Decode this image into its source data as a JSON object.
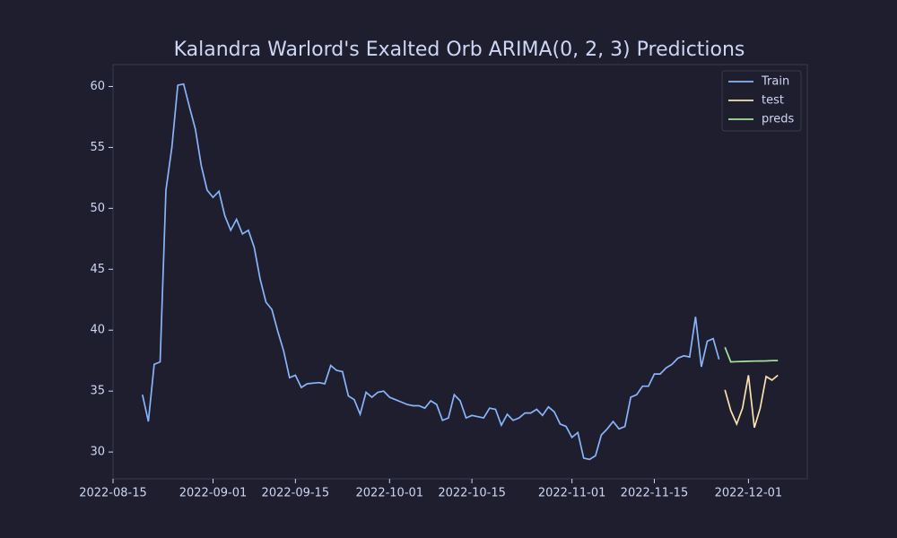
{
  "chart_data": {
    "type": "line",
    "title": "Kalandra Warlord's Exalted Orb ARIMA(0, 2, 3) Predictions",
    "xlim": [
      "2022-08-15",
      "2022-12-11"
    ],
    "xticks": [
      "2022-08-15",
      "2022-09-01",
      "2022-09-15",
      "2022-10-01",
      "2022-10-15",
      "2022-11-01",
      "2022-11-15",
      "2022-12-01"
    ],
    "ylim": [
      27.8,
      61.8
    ],
    "yticks": [
      30,
      35,
      40,
      45,
      50,
      55,
      60
    ],
    "legend": "upper right",
    "series": [
      {
        "name": "Train",
        "color": "#89b4fa",
        "x": [
          "2022-08-20",
          "2022-08-21",
          "2022-08-22",
          "2022-08-23",
          "2022-08-24",
          "2022-08-25",
          "2022-08-26",
          "2022-08-27",
          "2022-08-28",
          "2022-08-29",
          "2022-08-30",
          "2022-08-31",
          "2022-09-01",
          "2022-09-02",
          "2022-09-03",
          "2022-09-04",
          "2022-09-05",
          "2022-09-06",
          "2022-09-07",
          "2022-09-08",
          "2022-09-09",
          "2022-09-10",
          "2022-09-11",
          "2022-09-12",
          "2022-09-13",
          "2022-09-14",
          "2022-09-15",
          "2022-09-16",
          "2022-09-17",
          "2022-09-18",
          "2022-09-19",
          "2022-09-20",
          "2022-09-21",
          "2022-09-22",
          "2022-09-23",
          "2022-09-24",
          "2022-09-25",
          "2022-09-26",
          "2022-09-27",
          "2022-09-28",
          "2022-09-29",
          "2022-09-30",
          "2022-10-01",
          "2022-10-02",
          "2022-10-03",
          "2022-10-04",
          "2022-10-05",
          "2022-10-06",
          "2022-10-07",
          "2022-10-08",
          "2022-10-09",
          "2022-10-10",
          "2022-10-11",
          "2022-10-12",
          "2022-10-13",
          "2022-10-14",
          "2022-10-15",
          "2022-10-16",
          "2022-10-17",
          "2022-10-18",
          "2022-10-19",
          "2022-10-20",
          "2022-10-21",
          "2022-10-22",
          "2022-10-23",
          "2022-10-24",
          "2022-10-25",
          "2022-10-26",
          "2022-10-27",
          "2022-10-28",
          "2022-10-29",
          "2022-10-30",
          "2022-10-31",
          "2022-11-01",
          "2022-11-02",
          "2022-11-03",
          "2022-11-04",
          "2022-11-05",
          "2022-11-06",
          "2022-11-07",
          "2022-11-08",
          "2022-11-09",
          "2022-11-10",
          "2022-11-11",
          "2022-11-12",
          "2022-11-13",
          "2022-11-14",
          "2022-11-15",
          "2022-11-16",
          "2022-11-17",
          "2022-11-18",
          "2022-11-19",
          "2022-11-20",
          "2022-11-21",
          "2022-11-22",
          "2022-11-23",
          "2022-11-24",
          "2022-11-25",
          "2022-11-26"
        ],
        "values": [
          34.7,
          32.5,
          37.2,
          37.4,
          51.5,
          55,
          60.1,
          60.2,
          58.3,
          56.5,
          53.5,
          51.5,
          50.9,
          51.4,
          49.4,
          48.2,
          49.1,
          47.9,
          48.2,
          46.8,
          44.2,
          42.3,
          41.7,
          39.9,
          38.3,
          36.1,
          36.3,
          35.3,
          35.6,
          35.65,
          35.7,
          35.6,
          37.1,
          36.7,
          36.6,
          34.6,
          34.3,
          33.1,
          34.9,
          34.5,
          34.9,
          35.0,
          34.5,
          34.3,
          34.1,
          33.9,
          33.8,
          33.8,
          33.6,
          34.2,
          33.9,
          32.6,
          32.8,
          34.7,
          34.2,
          32.8,
          33.0,
          32.9,
          32.8,
          33.6,
          33.5,
          32.2,
          33.1,
          32.6,
          32.8,
          33.2,
          33.2,
          33.5,
          33.0,
          33.7,
          33.3,
          32.3,
          32.1,
          31.2,
          31.6,
          29.5,
          29.4,
          29.7,
          31.4,
          31.9,
          32.5,
          31.9,
          32.1,
          34.5,
          34.7,
          35.4,
          35.4,
          36.4,
          36.4,
          36.9,
          37.2,
          37.7,
          37.9,
          37.8,
          41.1,
          37.0,
          39.1,
          39.3,
          37.6
        ]
      },
      {
        "name": "test",
        "color": "#f9e2af",
        "x": [
          "2022-11-27",
          "2022-11-28",
          "2022-11-29",
          "2022-11-30",
          "2022-12-01",
          "2022-12-02",
          "2022-12-03",
          "2022-12-04",
          "2022-12-05",
          "2022-12-06"
        ],
        "values": [
          35.1,
          33.4,
          32.3,
          33.6,
          36.3,
          32.0,
          33.6,
          36.2,
          35.9,
          36.3
        ]
      },
      {
        "name": "preds",
        "color": "#a6e3a1",
        "x": [
          "2022-11-27",
          "2022-11-28",
          "2022-11-29",
          "2022-11-30",
          "2022-12-01",
          "2022-12-02",
          "2022-12-03",
          "2022-12-04",
          "2022-12-05",
          "2022-12-06"
        ],
        "values": [
          38.6,
          37.4,
          37.42,
          37.43,
          37.45,
          37.46,
          37.47,
          37.48,
          37.5,
          37.51
        ]
      }
    ]
  }
}
